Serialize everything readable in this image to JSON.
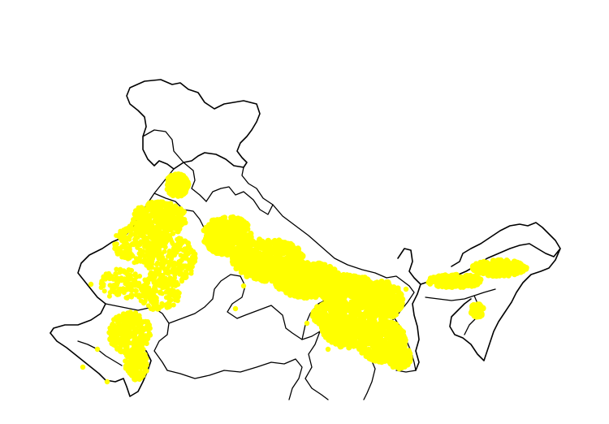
{
  "map": {
    "background_color": "#ffffff",
    "border_color": "#000000",
    "marker_color": "#ffff00",
    "marker_shape": "filled-circle",
    "legend": null,
    "title": ""
  }
}
